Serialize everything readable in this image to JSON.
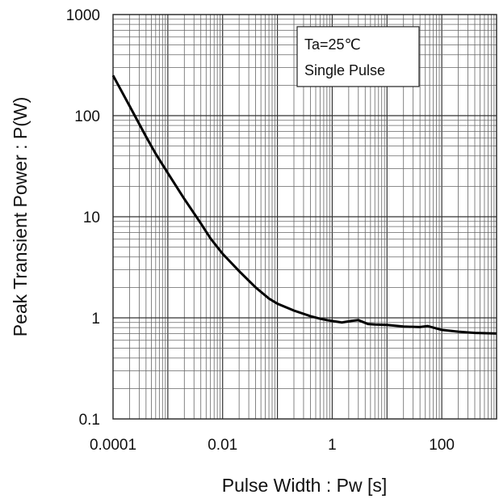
{
  "chart_data": {
    "type": "line",
    "title": "",
    "xlabel": "Pulse Width : Pw [s]",
    "ylabel": "Peak Transient Power : P(W)",
    "x_scale": "log",
    "y_scale": "log",
    "xlim": [
      0.0001,
      1000
    ],
    "ylim": [
      0.1,
      1000
    ],
    "x_tick_labels": [
      "0.0001",
      "0.01",
      "1",
      "100"
    ],
    "y_tick_labels": [
      "0.1",
      "1",
      "10",
      "100",
      "1000"
    ],
    "grid": true,
    "annotation_lines": [
      "Ta=25℃",
      "Single Pulse"
    ],
    "series": [
      {
        "color": "#000000",
        "points": [
          [
            0.0001,
            250
          ],
          [
            0.0002,
            125
          ],
          [
            0.0004,
            62
          ],
          [
            0.0006,
            42
          ],
          [
            0.001,
            27
          ],
          [
            0.002,
            15
          ],
          [
            0.004,
            8.6
          ],
          [
            0.006,
            6.1
          ],
          [
            0.01,
            4.3
          ],
          [
            0.02,
            2.9
          ],
          [
            0.04,
            2.0
          ],
          [
            0.07,
            1.55
          ],
          [
            0.1,
            1.38
          ],
          [
            0.2,
            1.18
          ],
          [
            0.4,
            1.04
          ],
          [
            0.6,
            0.98
          ],
          [
            0.8,
            0.95
          ],
          [
            1,
            0.93
          ],
          [
            1.5,
            0.9
          ],
          [
            2.2,
            0.93
          ],
          [
            3,
            0.95
          ],
          [
            4.5,
            0.87
          ],
          [
            6,
            0.86
          ],
          [
            10,
            0.85
          ],
          [
            20,
            0.82
          ],
          [
            40,
            0.81
          ],
          [
            55,
            0.83
          ],
          [
            70,
            0.8
          ],
          [
            100,
            0.76
          ],
          [
            200,
            0.73
          ],
          [
            400,
            0.71
          ],
          [
            1000,
            0.7
          ]
        ]
      }
    ]
  }
}
